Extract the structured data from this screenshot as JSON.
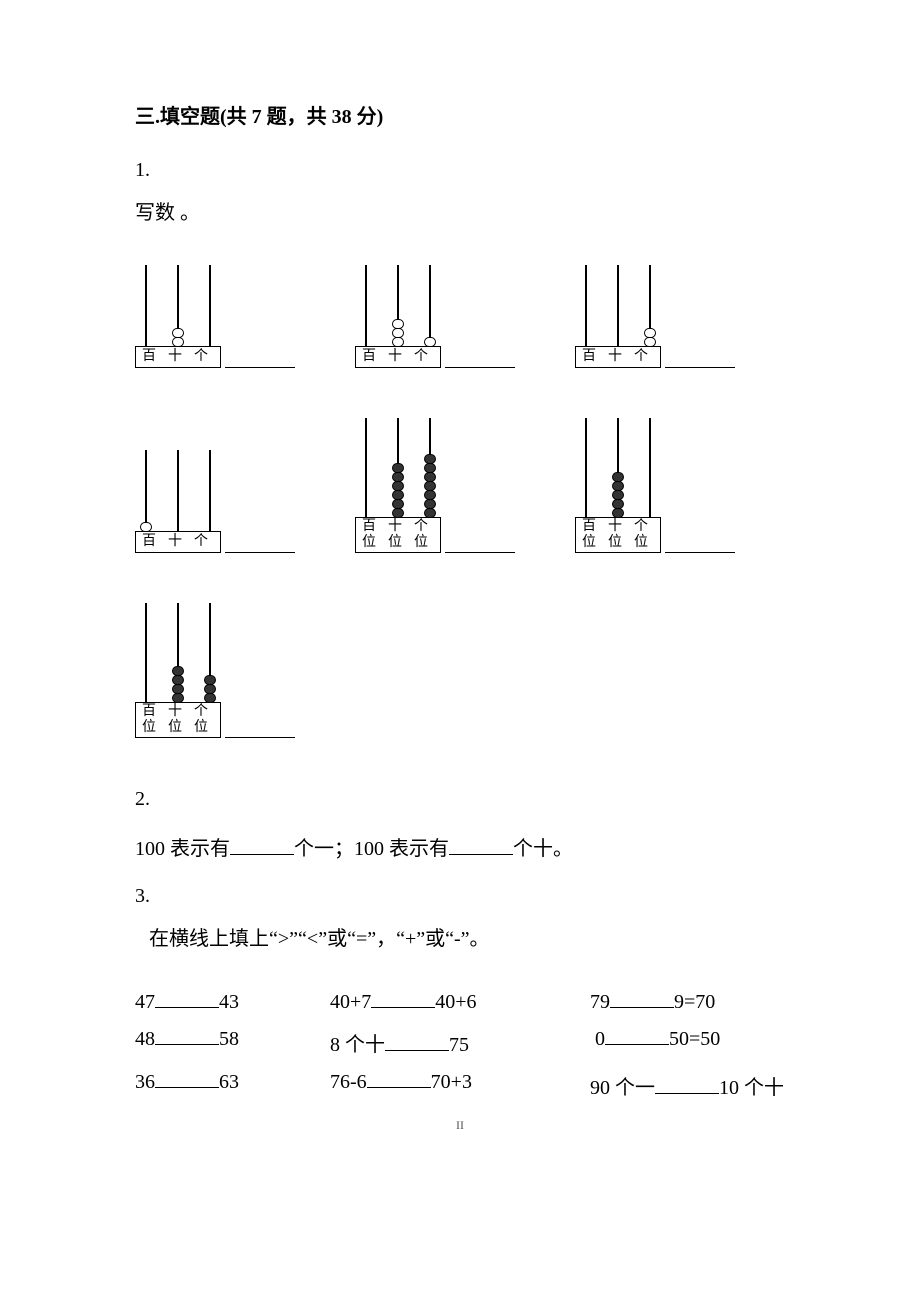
{
  "section": {
    "title": "三.填空题(共 7 题，共 38 分)"
  },
  "q1": {
    "number": "1.",
    "prompt": "写数 。",
    "abacus_labels_single": [
      "百",
      "十",
      "个"
    ],
    "abacus_labels_double_top": [
      "百",
      "十",
      "个"
    ],
    "abacus_labels_double_bot": [
      "位",
      "位",
      "位"
    ],
    "bead_color_light": "#ffffff",
    "bead_color_dark": "#333333",
    "row1": [
      {
        "type": "single",
        "beads": [
          0,
          2,
          0
        ]
      },
      {
        "type": "single",
        "beads": [
          0,
          3,
          1
        ]
      },
      {
        "type": "single",
        "beads": [
          0,
          0,
          2
        ]
      }
    ],
    "row2": [
      {
        "type": "single",
        "beads": [
          1,
          0,
          0
        ]
      },
      {
        "type": "double",
        "dark": true,
        "beads": [
          0,
          6,
          7
        ]
      },
      {
        "type": "double",
        "dark": true,
        "beads": [
          0,
          5,
          0
        ]
      }
    ],
    "row3": [
      {
        "type": "double",
        "dark": true,
        "beads": [
          0,
          4,
          3
        ]
      }
    ]
  },
  "q2": {
    "number": "2.",
    "text_a": "100 表示有",
    "text_b": "个一；100 表示有",
    "text_c": "个十。"
  },
  "q3": {
    "number": "3.",
    "prompt": "在横线上填上“>”“<”或“=”，“+”或“-”。",
    "rows": [
      {
        "a_left": "47",
        "a_right": "43",
        "b_left": "40+7",
        "b_right": "40+6",
        "c_left": "79",
        "c_right": "9=70"
      },
      {
        "a_left": "48",
        "a_right": "58",
        "b_left": "8 个十",
        "b_right": "75",
        "c_left": "0",
        "c_right": "50=50"
      },
      {
        "a_left": "36",
        "a_right": "63",
        "b_left": "76-6",
        "b_right": "70+3",
        "c_left": "90 个一",
        "c_right": "10 个十"
      }
    ]
  },
  "page_marker": "II"
}
